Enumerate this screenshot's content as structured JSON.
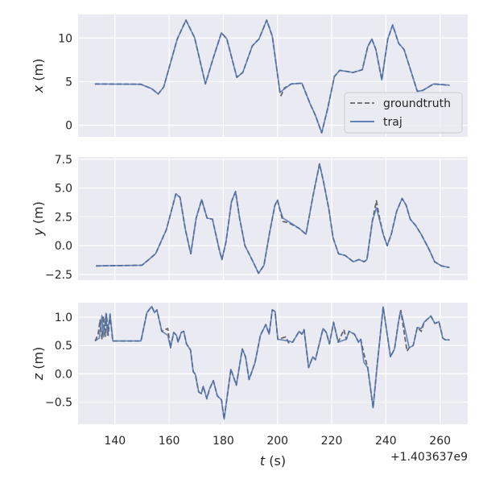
{
  "chart_data": [
    {
      "type": "line",
      "ylabel": "x (m)",
      "ylabel_var": "x",
      "ylabel_unit": " (m)",
      "xlim": [
        126.4,
        270.2
      ],
      "ylim": [
        -1.32,
        12.7
      ],
      "yticks": [
        0,
        5,
        10
      ],
      "ytick_labels": [
        "0",
        "5",
        "10"
      ],
      "grid": true,
      "legend": {
        "placement": "lower-right",
        "entries": [
          "groundtruth",
          "traj"
        ]
      },
      "series": [
        {
          "name": "groundtruth",
          "style": "dashed",
          "t": [
            132.6,
            149.6,
            153.6,
            156,
            158,
            163,
            166.2,
            169.4,
            173.4,
            176.3,
            179.3,
            181.3,
            185,
            187.2,
            190.7,
            193.2,
            196,
            198.1,
            200.9,
            201.3,
            202.6,
            205.1,
            209,
            212,
            214,
            216.3,
            218.5,
            221,
            223,
            227.9,
            231.3,
            233.3,
            234.8,
            236.3,
            238.5,
            240.7,
            242.5,
            244.7,
            246.7,
            251.6,
            253.6,
            257.6,
            263.5
          ],
          "v": [
            4.74,
            4.7,
            4.2,
            3.6,
            4.4,
            9.9,
            12.05,
            10.05,
            4.74,
            7.75,
            10.6,
            9.9,
            5.5,
            6.06,
            9.1,
            9.9,
            12.05,
            10.2,
            3.75,
            3.4,
            4.3,
            4.74,
            4.83,
            2.5,
            1.14,
            -0.86,
            1.9,
            5.6,
            6.3,
            6.06,
            6.37,
            9.0,
            9.9,
            8.7,
            5.2,
            9.9,
            11.5,
            9.4,
            8.7,
            3.9,
            4.0,
            4.74,
            4.6
          ]
        },
        {
          "name": "traj",
          "style": "solid",
          "t": [
            132.6,
            149.6,
            153.6,
            156,
            158,
            163,
            166.2,
            169.4,
            173.4,
            176.3,
            179.3,
            181.3,
            185,
            187.2,
            190.7,
            193.2,
            196,
            198.1,
            200.9,
            202.6,
            205.1,
            209,
            212,
            214,
            216.3,
            218.5,
            221,
            223,
            227.9,
            231.3,
            233.3,
            234.8,
            236.3,
            238.5,
            240.7,
            242.5,
            244.7,
            246.7,
            251.6,
            253.6,
            257.6,
            263.5
          ],
          "v": [
            4.74,
            4.7,
            4.2,
            3.6,
            4.4,
            9.9,
            12.05,
            10.05,
            4.74,
            7.75,
            10.6,
            9.9,
            5.5,
            6.06,
            9.1,
            9.9,
            12.05,
            10.2,
            3.75,
            4.2,
            4.74,
            4.83,
            2.5,
            1.14,
            -0.86,
            1.9,
            5.6,
            6.3,
            6.06,
            6.37,
            9.0,
            9.9,
            8.7,
            5.2,
            9.9,
            11.5,
            9.4,
            8.7,
            3.9,
            4.0,
            4.74,
            4.6
          ]
        }
      ]
    },
    {
      "type": "line",
      "ylabel": "y (m)",
      "ylabel_var": "y",
      "ylabel_unit": " (m)",
      "xlim": [
        126.4,
        270.2
      ],
      "ylim": [
        -2.99,
        7.7
      ],
      "yticks": [
        -2.5,
        0,
        2.5,
        5,
        7.5
      ],
      "ytick_labels": [
        "−2.5",
        "0.0",
        "2.5",
        "5.0",
        "7.5"
      ],
      "grid": true,
      "series": [
        {
          "name": "groundtruth",
          "style": "dashed",
          "t": [
            133,
            150,
            155,
            159,
            162.5,
            164,
            166,
            168,
            170,
            172,
            174,
            176,
            178.5,
            179.5,
            181,
            183,
            184.5,
            186,
            188,
            191,
            193,
            195,
            197,
            199,
            200,
            201,
            202,
            204,
            208,
            210.5,
            213,
            215.5,
            217,
            219,
            220.5,
            222.5,
            225,
            228,
            230,
            232,
            233,
            235,
            236.5,
            237.5,
            239,
            240.5,
            242,
            244,
            246,
            247.5,
            249,
            251,
            253,
            256,
            258,
            260.5,
            263.5
          ],
          "v": [
            -1.75,
            -1.7,
            -0.7,
            1.4,
            4.5,
            4.2,
            1.4,
            -0.7,
            2.4,
            4.0,
            2.4,
            2.3,
            -0.35,
            -1.2,
            0.35,
            3.8,
            4.7,
            2.4,
            0,
            -1.4,
            -2.4,
            -1.7,
            1.0,
            3.5,
            3.95,
            3.0,
            2.1,
            2.0,
            1.5,
            1.0,
            4.2,
            7.1,
            5.55,
            3.1,
            0.7,
            -0.7,
            -0.85,
            -1.4,
            -1.2,
            -1.4,
            -1.2,
            2.1,
            3.9,
            2.6,
            1.0,
            0,
            1.0,
            3.0,
            4.1,
            3.5,
            2.3,
            1.75,
            1.0,
            -0.35,
            -1.4,
            -1.75,
            -1.9
          ]
        },
        {
          "name": "traj",
          "style": "solid",
          "t": [
            133,
            150,
            155,
            159,
            162.5,
            164,
            166,
            168,
            170,
            172,
            174,
            176,
            178.5,
            179.5,
            181,
            183,
            184.5,
            186,
            188,
            191,
            193,
            195,
            197,
            199,
            200,
            201,
            202,
            204,
            208,
            210.5,
            213,
            215.5,
            217,
            219,
            220.5,
            222.5,
            225,
            228,
            230,
            232,
            233,
            235,
            236.5,
            237.5,
            239,
            240.5,
            242,
            244,
            246,
            247.5,
            249,
            251,
            253,
            256,
            258,
            260.5,
            263.5
          ],
          "v": [
            -1.75,
            -1.7,
            -0.7,
            1.4,
            4.5,
            4.2,
            1.4,
            -0.7,
            2.4,
            4.0,
            2.4,
            2.3,
            -0.35,
            -1.2,
            0.35,
            3.8,
            4.7,
            2.4,
            0,
            -1.4,
            -2.4,
            -1.7,
            1.0,
            3.5,
            3.95,
            3.1,
            2.4,
            2.1,
            1.5,
            1.0,
            4.2,
            7.1,
            5.55,
            3.1,
            0.7,
            -0.7,
            -0.85,
            -1.4,
            -1.2,
            -1.4,
            -1.2,
            2.1,
            3.3,
            2.4,
            1.0,
            0,
            1.0,
            3.0,
            4.1,
            3.5,
            2.3,
            1.75,
            1.0,
            -0.35,
            -1.4,
            -1.75,
            -1.9
          ]
        }
      ]
    },
    {
      "type": "line",
      "ylabel": "z (m)",
      "ylabel_var": "z",
      "ylabel_unit": " (m)",
      "xlabel": "t (s)",
      "xlabel_var": "t",
      "xlabel_unit": " (s)",
      "xlim": [
        126.4,
        270.2
      ],
      "ylim": [
        -0.89,
        1.256
      ],
      "yticks": [
        -0.5,
        0,
        0.5,
        1
      ],
      "ytick_labels": [
        "−0.5",
        "0.0",
        "0.5",
        "1.0"
      ],
      "xticks": [
        140,
        160,
        180,
        200,
        220,
        240,
        260
      ],
      "xtick_labels": [
        "140",
        "160",
        "180",
        "200",
        "220",
        "240",
        "260"
      ],
      "x_offset_text": "+1.403637e9",
      "grid": true,
      "series": [
        {
          "name": "groundtruth",
          "style": "dashed",
          "t": [
            132.7,
            133.8,
            134.5,
            135.2,
            135.7,
            136.4,
            136.9,
            137.5,
            138.2,
            139.2,
            149.6,
            151.8,
            153.6,
            154.6,
            155.5,
            157.3,
            159.5,
            160.5,
            161.7,
            162.7,
            163.3,
            164.5,
            165.4,
            166.4,
            167.9,
            168.9,
            169.7,
            170.9,
            171.9,
            172.6,
            173.9,
            174.9,
            176.3,
            177.8,
            179.3,
            180.3,
            182.8,
            184.8,
            187,
            188.2,
            189.5,
            190.7,
            191.7,
            193.7,
            195.7,
            196.9,
            198.1,
            199.1,
            200.1,
            203,
            204.1,
            205.6,
            208,
            209,
            209.8,
            211.5,
            213,
            214,
            216.8,
            218,
            219.2,
            220.7,
            222.4,
            224.5,
            225.4,
            226.4,
            228.4,
            229.9,
            230.7,
            231.9,
            233.3,
            235.3,
            236.8,
            239,
            241.7,
            243.2,
            244.6,
            245.5,
            247.8,
            248.6,
            250.1,
            251.6,
            253.1,
            254.1,
            256.6,
            258.1,
            259.6,
            261,
            262,
            263.5
          ],
          "v": [
            0.58,
            0.7,
            0.95,
            0.62,
            1.02,
            0.66,
            1.05,
            0.68,
            1.04,
            0.58,
            0.58,
            1.08,
            1.19,
            1.08,
            1.13,
            0.75,
            0.8,
            0.46,
            0.73,
            0.68,
            0.56,
            0.73,
            0.75,
            0.53,
            0.42,
            0.04,
            -0.01,
            -0.32,
            -0.35,
            -0.22,
            -0.44,
            -0.27,
            -0.12,
            -0.39,
            -0.46,
            -0.8,
            0.08,
            -0.2,
            0.44,
            0.3,
            -0.1,
            0.06,
            0.2,
            0.68,
            0.87,
            0.7,
            1.13,
            1.1,
            0.61,
            0.65,
            0.55,
            0.56,
            0.75,
            0.7,
            0.78,
            0.11,
            0.3,
            0.25,
            0.8,
            0.73,
            0.53,
            0.91,
            0.56,
            0.78,
            0.61,
            0.75,
            0.7,
            0.56,
            0.61,
            0.35,
            0.11,
            -0.6,
            0.16,
            1.18,
            0.3,
            0.44,
            0.9,
            1.12,
            0.4,
            0.46,
            0.5,
            0.82,
            0.75,
            0.91,
            1.02,
            0.89,
            0.92,
            0.63,
            0.6,
            0.6
          ]
        },
        {
          "name": "traj",
          "style": "solid",
          "t": [
            132.7,
            134.2,
            135.2,
            135.7,
            136.7,
            137.2,
            138.2,
            139.2,
            149.6,
            151.8,
            153.6,
            154.6,
            155.5,
            157.3,
            159.5,
            160.5,
            161.7,
            162.7,
            163.3,
            164.5,
            165.4,
            166.4,
            167.9,
            168.9,
            169.7,
            170.9,
            171.9,
            172.6,
            173.9,
            174.9,
            176.3,
            177.8,
            179.3,
            180.3,
            182.8,
            184.8,
            187,
            188.2,
            189.5,
            190.7,
            191.7,
            193.7,
            195.7,
            196.9,
            198.1,
            199.1,
            200.1,
            204.1,
            205.6,
            208,
            209,
            209.8,
            211.5,
            213,
            214,
            216.8,
            218,
            219.2,
            220.7,
            222.4,
            225.4,
            226.4,
            228.4,
            229.9,
            230.7,
            231.9,
            233.3,
            235.3,
            236.8,
            239,
            241.7,
            243.2,
            245.2,
            245.9,
            248.6,
            250.1,
            251.6,
            253.1,
            254.1,
            256.6,
            258.1,
            259.6,
            261,
            262,
            263.5
          ],
          "v": [
            0.58,
            0.63,
            1.03,
            0.65,
            1.07,
            0.68,
            1.06,
            0.58,
            0.58,
            1.08,
            1.19,
            1.08,
            1.13,
            0.75,
            0.68,
            0.46,
            0.73,
            0.68,
            0.56,
            0.73,
            0.75,
            0.53,
            0.42,
            0.04,
            -0.01,
            -0.32,
            -0.35,
            -0.22,
            -0.44,
            -0.27,
            -0.12,
            -0.39,
            -0.46,
            -0.8,
            0.08,
            -0.2,
            0.44,
            0.3,
            -0.1,
            0.06,
            0.2,
            0.68,
            0.87,
            0.7,
            1.13,
            1.1,
            0.61,
            0.58,
            0.56,
            0.75,
            0.7,
            0.78,
            0.11,
            0.3,
            0.25,
            0.8,
            0.73,
            0.53,
            0.91,
            0.56,
            0.61,
            0.75,
            0.7,
            0.56,
            0.61,
            0.2,
            0.11,
            -0.6,
            0.16,
            1.18,
            0.3,
            0.44,
            1.08,
            1.04,
            0.46,
            0.5,
            0.82,
            0.8,
            0.91,
            1.02,
            0.89,
            0.92,
            0.63,
            0.6,
            0.6
          ]
        }
      ]
    }
  ],
  "colors": {
    "background": "#eaeaf2",
    "grid": "#ffffff",
    "groundtruth": "#666666",
    "traj": "#4c72b0"
  }
}
